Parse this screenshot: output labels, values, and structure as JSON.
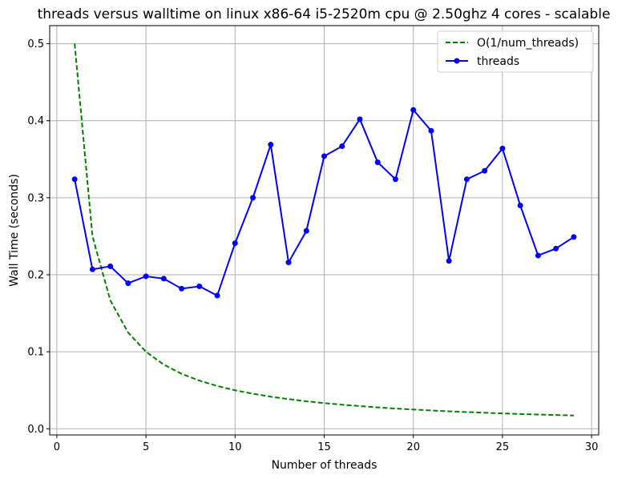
{
  "chart_data": {
    "type": "line",
    "title": "threads versus walltime on linux x86-64 i5-2520m cpu @ 2.50ghz 4 cores - scalable",
    "xlabel": "Number of threads",
    "ylabel": "Wall Time (seconds)",
    "xlim": [
      -0.4,
      30.4
    ],
    "ylim": [
      -0.008,
      0.5235
    ],
    "xticks": [
      0,
      5,
      10,
      15,
      20,
      25,
      30
    ],
    "yticks": [
      0.0,
      0.1,
      0.2,
      0.3,
      0.4,
      0.5
    ],
    "xtick_labels": [
      "0",
      "5",
      "10",
      "15",
      "20",
      "25",
      "30"
    ],
    "ytick_labels": [
      "0.0",
      "0.1",
      "0.2",
      "0.3",
      "0.4",
      "0.5"
    ],
    "grid": true,
    "legend_position": "top-right",
    "x": [
      1,
      2,
      3,
      4,
      5,
      6,
      7,
      8,
      9,
      10,
      11,
      12,
      13,
      14,
      15,
      16,
      17,
      18,
      19,
      20,
      21,
      22,
      23,
      24,
      25,
      26,
      27,
      28,
      29
    ],
    "series": [
      {
        "name": "O(1/num_threads)",
        "style": "dashed",
        "color": "#008000",
        "values": [
          0.5,
          0.25,
          0.1667,
          0.125,
          0.1,
          0.0833,
          0.0714,
          0.0625,
          0.0556,
          0.05,
          0.0455,
          0.0417,
          0.0385,
          0.0357,
          0.0333,
          0.0313,
          0.0294,
          0.0278,
          0.0263,
          0.025,
          0.0238,
          0.0227,
          0.0217,
          0.0208,
          0.02,
          0.0192,
          0.0185,
          0.0179,
          0.0172
        ]
      },
      {
        "name": "threads",
        "style": "solid-markers",
        "color": "#0000ff",
        "values": [
          0.324,
          0.207,
          0.211,
          0.189,
          0.198,
          0.195,
          0.182,
          0.185,
          0.173,
          0.241,
          0.3,
          0.369,
          0.216,
          0.257,
          0.354,
          0.367,
          0.402,
          0.346,
          0.324,
          0.414,
          0.387,
          0.218,
          0.324,
          0.335,
          0.364,
          0.29,
          0.225,
          0.234,
          0.249
        ]
      }
    ]
  }
}
